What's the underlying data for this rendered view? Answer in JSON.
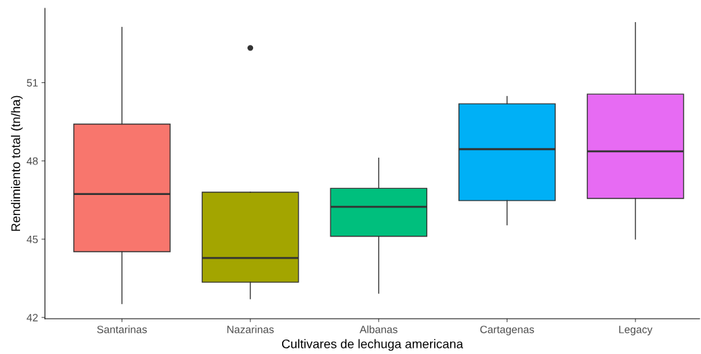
{
  "chart_data": {
    "type": "box",
    "xlabel": "Cultivares de lechuga americana",
    "ylabel": "Rendimiento total (tn/ha)",
    "categories": [
      "Santarinas",
      "Nazarinas",
      "Albanas",
      "Cartagenas",
      "Legacy"
    ],
    "colors": [
      "#f8766d",
      "#a3a500",
      "#00bf7d",
      "#00b0f6",
      "#e76bf3"
    ],
    "boxes": [
      {
        "low": 42.53,
        "q1": 44.52,
        "median": 46.73,
        "q3": 49.41,
        "high": 53.12
      },
      {
        "low": 42.72,
        "q1": 43.35,
        "median": 44.28,
        "q3": 46.8,
        "high": 46.8,
        "outliers": [
          52.33
        ]
      },
      {
        "low": 42.93,
        "q1": 45.11,
        "median": 46.24,
        "q3": 46.95,
        "high": 48.11
      },
      {
        "low": 45.55,
        "q1": 46.48,
        "median": 48.45,
        "q3": 50.19,
        "high": 50.47
      },
      {
        "low": 45.0,
        "q1": 46.56,
        "median": 48.37,
        "q3": 50.56,
        "high": 53.3
      }
    ],
    "ylim": [
      41.95,
      53.85
    ],
    "yticks": [
      42,
      45,
      48,
      51
    ],
    "grid": false
  }
}
